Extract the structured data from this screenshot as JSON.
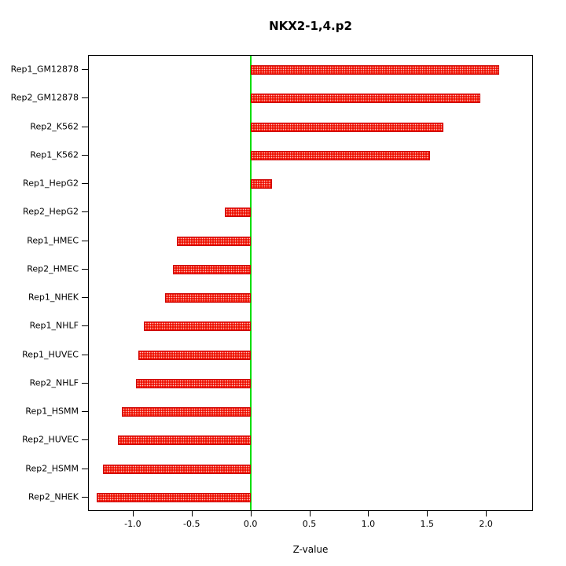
{
  "chart_data": {
    "type": "bar",
    "orientation": "horizontal",
    "title": "NKX2-1,4.p2",
    "xlabel": "Z-value",
    "categories": [
      "Rep1_GM12878",
      "Rep2_GM12878",
      "Rep2_K562",
      "Rep1_K562",
      "Rep1_HepG2",
      "Rep2_HepG2",
      "Rep1_HMEC",
      "Rep2_HMEC",
      "Rep1_NHEK",
      "Rep1_NHLF",
      "Rep1_HUVEC",
      "Rep2_NHLF",
      "Rep1_HSMM",
      "Rep2_HUVEC",
      "Rep2_HSMM",
      "Rep2_NHEK"
    ],
    "values": [
      2.12,
      1.96,
      1.64,
      1.53,
      0.18,
      -0.22,
      -0.63,
      -0.66,
      -0.73,
      -0.91,
      -0.96,
      -0.98,
      -1.1,
      -1.13,
      -1.26,
      -1.31
    ],
    "xlim": [
      -1.38,
      2.4
    ],
    "xticks": [
      -1.0,
      -0.5,
      0.0,
      0.5,
      1.0,
      1.5,
      2.0
    ],
    "xtick_labels": [
      "-1.0",
      "-0.5",
      "0.0",
      "0.5",
      "1.0",
      "1.5",
      "2.0"
    ],
    "grid": false,
    "legend_position": "none",
    "colors": {
      "bar": "#ee1100",
      "bar_border": "#cc0000",
      "zero_line": "#00dd00",
      "axis": "#000000",
      "background": "#ffffff"
    }
  }
}
